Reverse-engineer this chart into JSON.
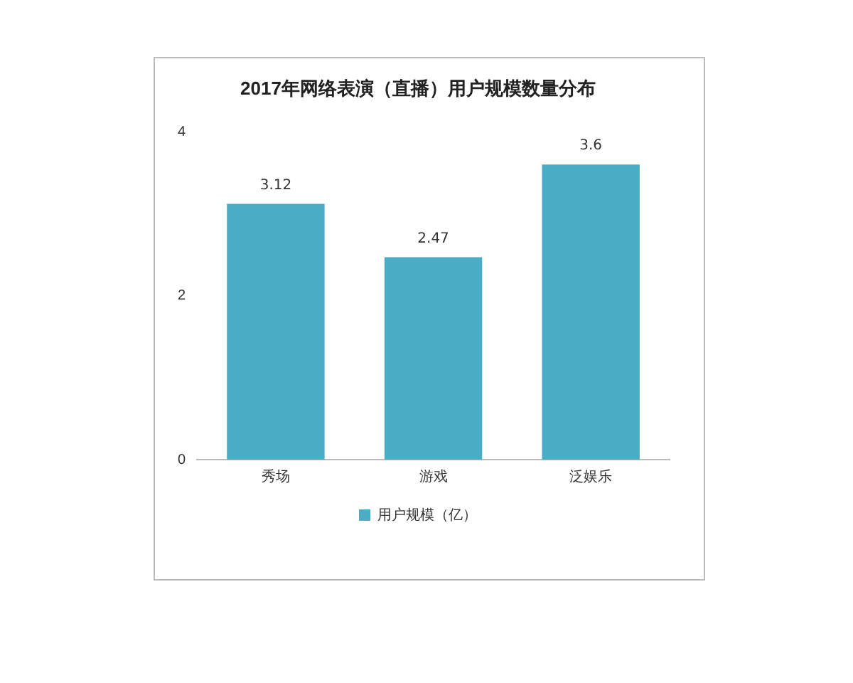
{
  "chart_data": {
    "type": "bar",
    "title": "2017年网络表演（直播）用户规模数量分布",
    "categories": [
      "秀场",
      "游戏",
      "泛娱乐"
    ],
    "series": [
      {
        "name": "用户规模（亿）",
        "color": "#4bacc6",
        "values": [
          3.12,
          2.47,
          3.6
        ]
      }
    ],
    "ylim": [
      0,
      4
    ],
    "yticks": [
      0,
      2,
      4
    ],
    "grid": false,
    "legend": "bottom",
    "data_labels": true
  }
}
